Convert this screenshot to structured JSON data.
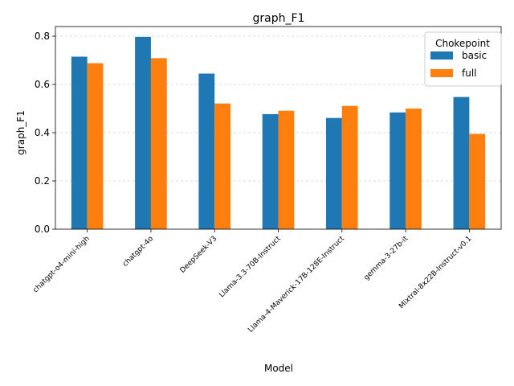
{
  "chart_data": {
    "type": "bar",
    "title": "graph_F1",
    "xlabel": "Model",
    "ylabel": "graph_F1",
    "ylim": [
      0,
      0.84
    ],
    "yticks": [
      "0.0",
      "0.2",
      "0.4",
      "0.6",
      "0.8"
    ],
    "categories": [
      "chatgpt-o4-mini-high",
      "chatgpt-4o",
      "DeepSeek-V3",
      "Llama-3.3-70B-Instruct",
      "Llama-4-Maverick-17B-128E-Instruct",
      "gemma-3-27b-it",
      "Mixtral-8x22B-Instruct-v0.1"
    ],
    "series": [
      {
        "name": "basic",
        "color": "#1f77b4",
        "values": [
          0.715,
          0.797,
          0.645,
          0.477,
          0.461,
          0.484,
          0.548
        ]
      },
      {
        "name": "full",
        "color": "#ff7f0e",
        "values": [
          0.688,
          0.709,
          0.521,
          0.491,
          0.511,
          0.5,
          0.395
        ]
      }
    ],
    "legend_title": "Chokepoint",
    "legend_position": "top-right",
    "grid": "y dashed"
  }
}
